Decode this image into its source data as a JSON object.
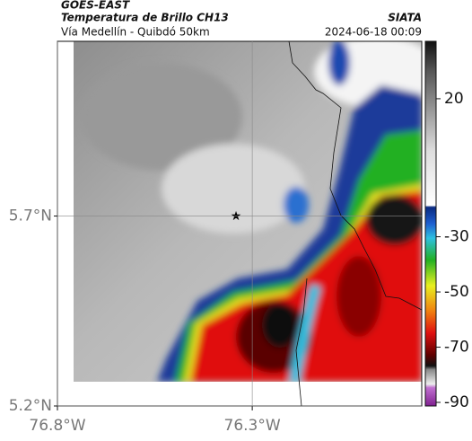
{
  "header": {
    "source": "GOES-EAST",
    "title": "Temperatura de Brillo CH13",
    "org": "SIATA",
    "route": "Vía Medellín - Quibdó 50km",
    "timestamp": "2024-06-18 00:09"
  },
  "map": {
    "xlim": [
      -76.8,
      -75.865
    ],
    "ylim": [
      5.2,
      6.16
    ],
    "xticks": [
      {
        "value": -76.8,
        "label": "76.8°W"
      },
      {
        "value": -76.3,
        "label": "76.3°W"
      }
    ],
    "yticks": [
      {
        "value": 5.2,
        "label": "5.2°N"
      },
      {
        "value": 5.7,
        "label": "5.7°N"
      }
    ],
    "grid": true
  },
  "colorbar": {
    "lim": [
      -91.3,
      40.8
    ],
    "ticks": [
      20,
      -30,
      -50,
      -70,
      -90
    ]
  }
}
